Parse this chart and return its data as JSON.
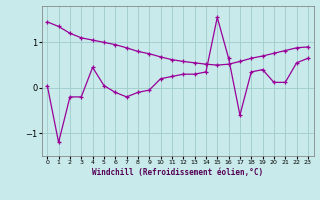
{
  "x": [
    0,
    1,
    2,
    3,
    4,
    5,
    6,
    7,
    8,
    9,
    10,
    11,
    12,
    13,
    14,
    15,
    16,
    17,
    18,
    19,
    20,
    21,
    22,
    23
  ],
  "line1": [
    0.05,
    -1.2,
    -0.2,
    -0.2,
    0.45,
    0.05,
    -0.1,
    -0.2,
    -0.1,
    -0.05,
    0.2,
    0.25,
    0.3,
    0.3,
    0.35,
    1.55,
    0.65,
    -0.6,
    0.35,
    0.4,
    0.12,
    0.12,
    0.55,
    0.65
  ],
  "line2": [
    1.45,
    1.35,
    1.2,
    1.1,
    1.05,
    1.0,
    0.95,
    0.88,
    0.8,
    0.75,
    0.68,
    0.62,
    0.58,
    0.55,
    0.52,
    0.5,
    0.52,
    0.58,
    0.65,
    0.7,
    0.76,
    0.82,
    0.88,
    0.9
  ],
  "color": "#990099",
  "bg_color": "#c8eaea",
  "grid_color": "#a0cccc",
  "xlabel": "Windchill (Refroidissement éolien,°C)",
  "xlim": [
    -0.5,
    23.5
  ],
  "ylim": [
    -1.5,
    1.8
  ],
  "yticks": [
    -1,
    0,
    1
  ],
  "xtick_labels": [
    "0",
    "1",
    "2",
    "3",
    "4",
    "5",
    "6",
    "7",
    "8",
    "9",
    "10",
    "11",
    "12",
    "13",
    "14",
    "15",
    "16",
    "17",
    "18",
    "19",
    "20",
    "21",
    "22",
    "23"
  ]
}
